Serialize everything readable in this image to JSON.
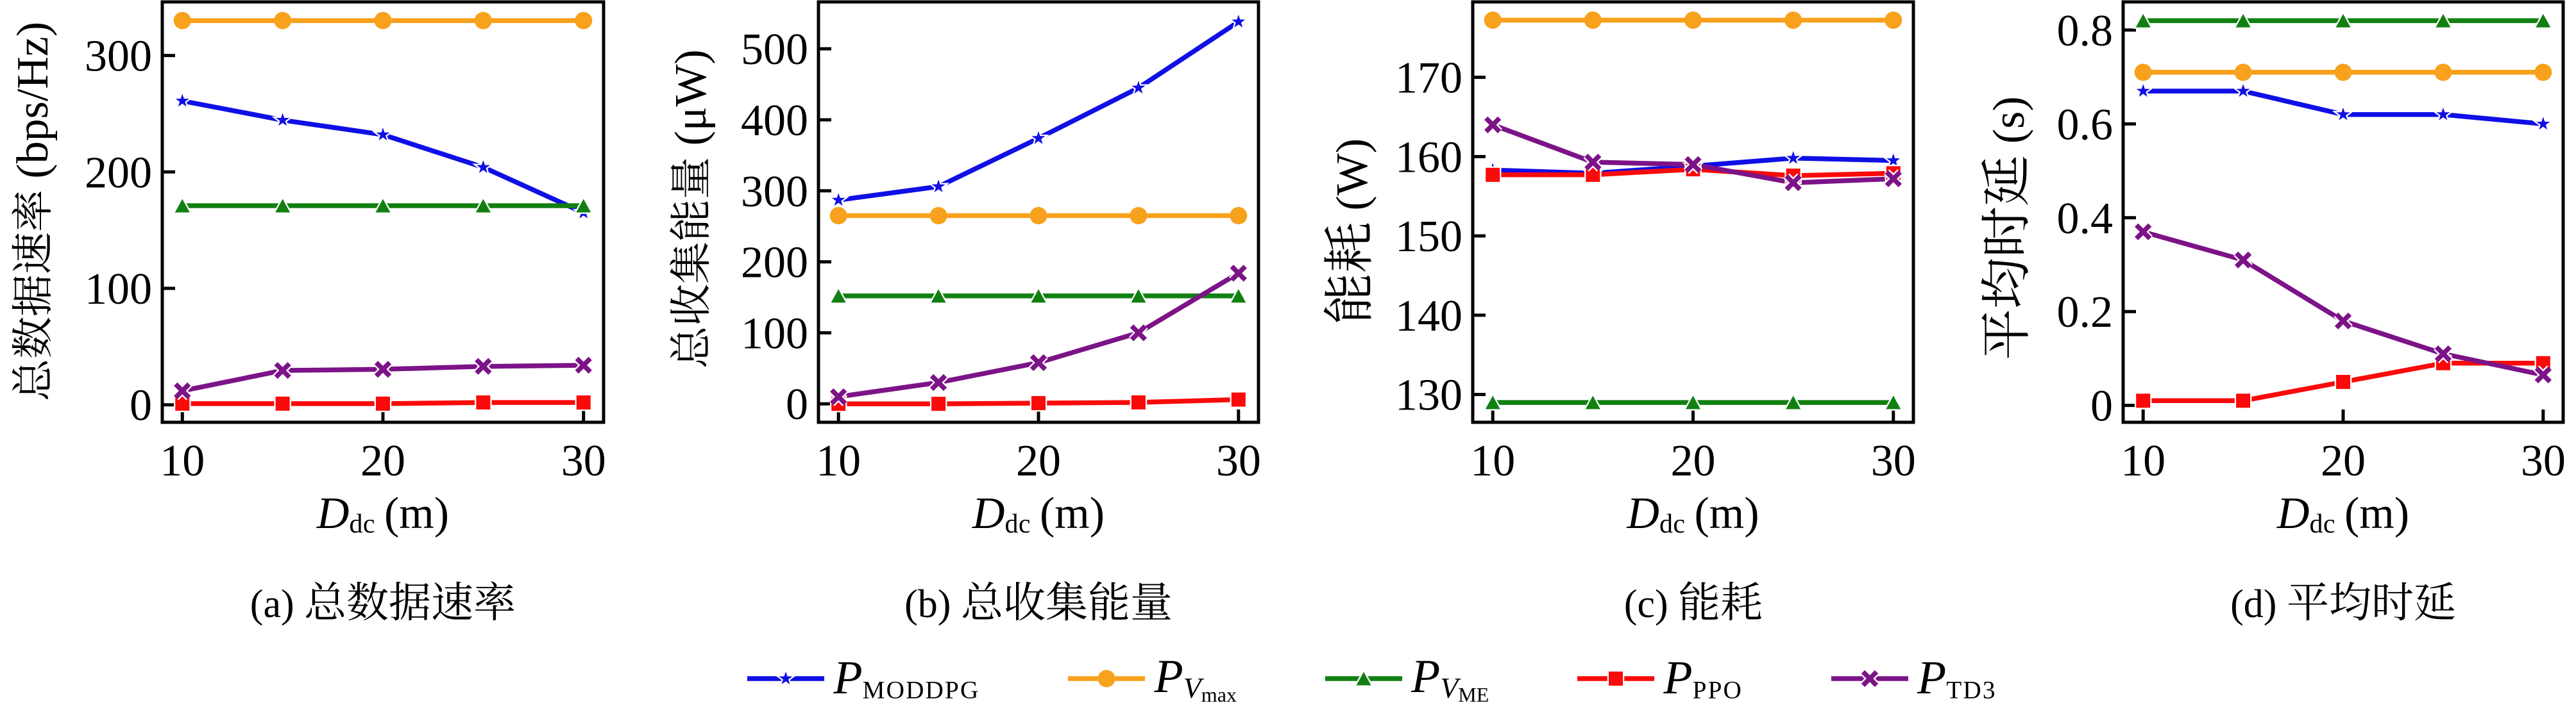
{
  "figure": {
    "background": "#ffffff",
    "text_color": "#000000",
    "x_values": [
      10,
      15,
      20,
      25,
      30
    ]
  },
  "legend": {
    "items": [
      {
        "name": "P_MODDPG",
        "base": "P",
        "sub": "MODDPG",
        "sub_italic": false,
        "subsub": "",
        "color": "#0f0fe6",
        "marker": "star"
      },
      {
        "name": "P_Vmax",
        "base": "P",
        "sub": "V",
        "sub_italic": true,
        "subsub": "max",
        "color": "#f8a11c",
        "marker": "circle"
      },
      {
        "name": "P_VME",
        "base": "P",
        "sub": "V",
        "sub_italic": true,
        "subsub": "ME",
        "color": "#118011",
        "marker": "triangle-up"
      },
      {
        "name": "P_PPO",
        "base": "P",
        "sub": "PPO",
        "sub_italic": false,
        "subsub": "",
        "color": "#fa0a0a",
        "marker": "square"
      },
      {
        "name": "P_TD3",
        "base": "P",
        "sub": "TD3",
        "sub_italic": false,
        "subsub": "",
        "color": "#7c1387",
        "marker": "x"
      }
    ],
    "position": "bottom-center"
  },
  "chart_data": [
    {
      "type": "line",
      "title": "(a) 总数据速率",
      "ylabel": "总数据速率 (bps/Hz)",
      "xlabel": {
        "base": "D",
        "sub": "dc",
        "unit": "(m)"
      },
      "x": [
        10,
        15,
        20,
        25,
        30
      ],
      "xlim": [
        9,
        31
      ],
      "xticks": [
        10,
        20,
        30
      ],
      "ylim": [
        -15,
        346
      ],
      "yticks": [
        0,
        100,
        200,
        300
      ],
      "grid": false,
      "legend_position": "south-outside",
      "series": [
        {
          "name": "P_MODDPG",
          "values": [
            261,
            244.5,
            232,
            204,
            165
          ]
        },
        {
          "name": "P_Vmax",
          "values": [
            330,
            330,
            330,
            330,
            330
          ]
        },
        {
          "name": "P_VME",
          "values": [
            171,
            171,
            171,
            171,
            171
          ]
        },
        {
          "name": "P_PPO",
          "values": [
            1,
            1,
            1,
            2,
            2
          ]
        },
        {
          "name": "P_TD3",
          "values": [
            12,
            29.5,
            30.5,
            33,
            34
          ]
        }
      ]
    },
    {
      "type": "line",
      "title": "(b) 总收集能量",
      "ylabel": "总收集能量 (μW)",
      "xlabel": {
        "base": "D",
        "sub": "dc",
        "unit": "(m)"
      },
      "x": [
        10,
        15,
        20,
        25,
        30
      ],
      "xlim": [
        9,
        31
      ],
      "xticks": [
        10,
        20,
        30
      ],
      "ylim": [
        -26,
        566
      ],
      "yticks": [
        0,
        100,
        200,
        300,
        400,
        500
      ],
      "grid": false,
      "legend_position": "south-outside",
      "series": [
        {
          "name": "P_MODDPG",
          "values": [
            287,
            306,
            374,
            445,
            538
          ]
        },
        {
          "name": "P_Vmax",
          "values": [
            265,
            265,
            265,
            265,
            265
          ]
        },
        {
          "name": "P_VME",
          "values": [
            152,
            152,
            152,
            152,
            152
          ]
        },
        {
          "name": "P_PPO",
          "values": [
            0,
            0,
            1,
            2,
            6
          ]
        },
        {
          "name": "P_TD3",
          "values": [
            10,
            30,
            58,
            100,
            184
          ]
        }
      ]
    },
    {
      "type": "line",
      "title": "(c) 能耗",
      "ylabel": "能耗 (W)",
      "xlabel": {
        "base": "D",
        "sub": "dc",
        "unit": "(m)"
      },
      "x": [
        10,
        15,
        20,
        25,
        30
      ],
      "xlim": [
        9,
        31
      ],
      "xticks": [
        10,
        20,
        30
      ],
      "ylim": [
        126.5,
        179.5
      ],
      "yticks": [
        130,
        140,
        150,
        160,
        170
      ],
      "grid": false,
      "legend_position": "south-outside",
      "series": [
        {
          "name": "P_MODDPG",
          "values": [
            158.3,
            157.9,
            158.8,
            159.8,
            159.5
          ]
        },
        {
          "name": "P_Vmax",
          "values": [
            177.2,
            177.2,
            177.2,
            177.2,
            177.2
          ]
        },
        {
          "name": "P_VME",
          "values": [
            129,
            129,
            129,
            129,
            129
          ]
        },
        {
          "name": "P_PPO",
          "values": [
            157.7,
            157.7,
            158.4,
            157.6,
            157.9
          ]
        },
        {
          "name": "P_TD3",
          "values": [
            164,
            159.3,
            159,
            156.7,
            157.2
          ]
        }
      ]
    },
    {
      "type": "line",
      "title": "(d) 平均时延",
      "ylabel": "平均时延 (s)",
      "xlabel": {
        "base": "D",
        "sub": "dc",
        "unit": "(m)"
      },
      "x": [
        10,
        15,
        20,
        25,
        30
      ],
      "xlim": [
        9,
        31
      ],
      "xticks": [
        10,
        20,
        30
      ],
      "ylim": [
        -0.036,
        0.86
      ],
      "yticks": [
        0,
        0.2,
        0.4,
        0.6,
        0.8
      ],
      "grid": false,
      "legend_position": "south-outside",
      "series": [
        {
          "name": "P_MODDPG",
          "values": [
            0.67,
            0.67,
            0.62,
            0.62,
            0.6
          ]
        },
        {
          "name": "P_Vmax",
          "values": [
            0.71,
            0.71,
            0.71,
            0.71,
            0.71
          ]
        },
        {
          "name": "P_VME",
          "values": [
            0.82,
            0.82,
            0.82,
            0.82,
            0.82
          ]
        },
        {
          "name": "P_PPO",
          "values": [
            0.01,
            0.01,
            0.05,
            0.09,
            0.09
          ]
        },
        {
          "name": "P_TD3",
          "values": [
            0.37,
            0.31,
            0.18,
            0.11,
            0.065
          ]
        }
      ]
    }
  ]
}
